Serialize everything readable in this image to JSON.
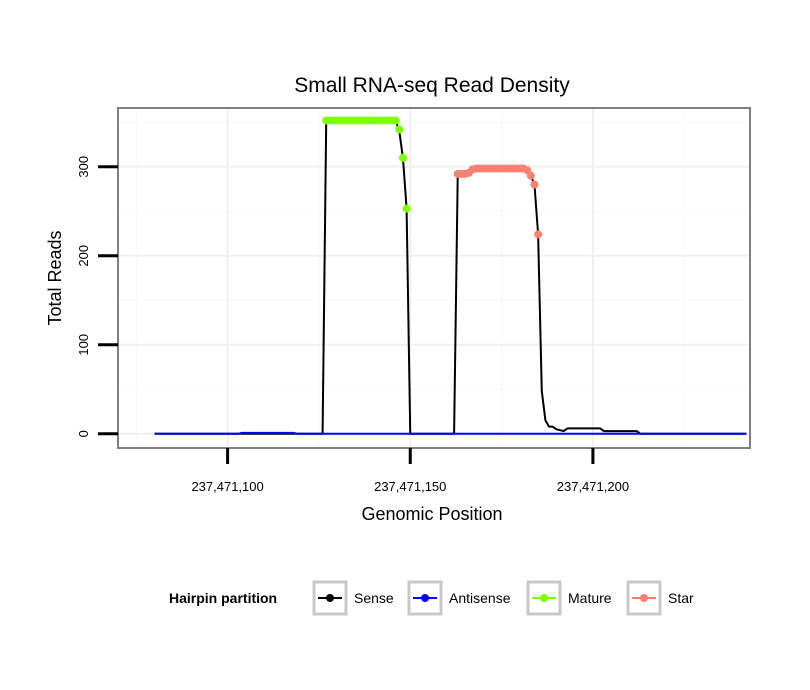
{
  "chart_data": {
    "type": "line",
    "title": "Small RNA-seq Read Density",
    "xlabel": "Genomic Position",
    "ylabel": "Total Reads",
    "xlim": [
      237471070,
      237471243
    ],
    "ylim": [
      -16,
      366
    ],
    "x_ticks": [
      {
        "value": 237471100,
        "label": "237,471,100"
      },
      {
        "value": 237471150,
        "label": "237,471,150"
      },
      {
        "value": 237471200,
        "label": "237,471,200"
      }
    ],
    "y_ticks": [
      {
        "value": 0,
        "label": "0"
      },
      {
        "value": 100,
        "label": "100"
      },
      {
        "value": 200,
        "label": "200"
      },
      {
        "value": 300,
        "label": "300"
      }
    ],
    "grid": true,
    "legend": {
      "title": "Hairpin partition",
      "position": "bottom",
      "entries": [
        {
          "name": "Sense",
          "color": "#000000"
        },
        {
          "name": "Antisense",
          "color": "#0000ff"
        },
        {
          "name": "Mature",
          "color": "#7fff00"
        },
        {
          "name": "Star",
          "color": "#fa8072"
        }
      ]
    },
    "series": [
      {
        "name": "Sense",
        "kind": "line",
        "color": "#000000",
        "x": [
          237471080,
          237471126,
          237471127,
          237471146,
          237471147,
          237471148,
          237471149,
          237471150,
          237471162,
          237471163,
          237471166,
          237471167,
          237471182,
          237471183,
          237471184,
          237471185,
          237471186,
          237471187,
          237471188,
          237471189,
          237471190,
          237471192,
          237471193,
          237471202,
          237471203,
          237471212,
          237471213,
          237471242
        ],
        "y": [
          0,
          0,
          352,
          352,
          340,
          310,
          253,
          0,
          0,
          292,
          292,
          298,
          298,
          290,
          280,
          224,
          48,
          15,
          8,
          8,
          5,
          3,
          6,
          6,
          3,
          3,
          0,
          0
        ]
      },
      {
        "name": "Antisense",
        "kind": "line",
        "color": "#0000ff",
        "x": [
          237471080,
          237471103,
          237471104,
          237471118,
          237471119,
          237471242
        ],
        "y": [
          0,
          0,
          1,
          1,
          0,
          0
        ]
      },
      {
        "name": "Mature",
        "kind": "points",
        "color": "#7fff00",
        "x": [
          237471127,
          237471128,
          237471129,
          237471130,
          237471131,
          237471132,
          237471133,
          237471134,
          237471135,
          237471136,
          237471137,
          237471138,
          237471139,
          237471140,
          237471141,
          237471142,
          237471143,
          237471144,
          237471145,
          237471146,
          237471147,
          237471148,
          237471149
        ],
        "y": [
          352,
          352,
          352,
          352,
          352,
          352,
          352,
          352,
          352,
          352,
          352,
          352,
          352,
          352,
          352,
          352,
          352,
          352,
          352,
          352,
          342,
          310,
          253
        ]
      },
      {
        "name": "Star",
        "kind": "points",
        "color": "#fa8072",
        "x": [
          237471163,
          237471164,
          237471165,
          237471166,
          237471167,
          237471168,
          237471169,
          237471170,
          237471171,
          237471172,
          237471173,
          237471174,
          237471175,
          237471176,
          237471177,
          237471178,
          237471179,
          237471180,
          237471181,
          237471182,
          237471183,
          237471184,
          237471185
        ],
        "y": [
          292,
          292,
          292,
          293,
          297,
          298,
          298,
          298,
          298,
          298,
          298,
          298,
          298,
          298,
          298,
          298,
          298,
          298,
          298,
          296,
          290,
          280,
          224
        ]
      }
    ]
  }
}
